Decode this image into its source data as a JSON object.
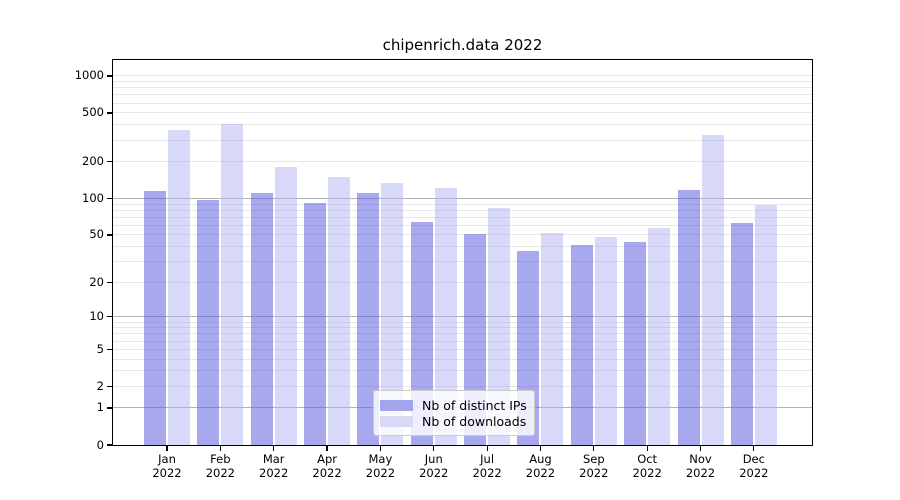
{
  "figure": {
    "background": "#ffffff"
  },
  "chart_data": {
    "type": "bar",
    "title": "chipenrich.data 2022",
    "categories": [
      "Jan",
      "Feb",
      "Mar",
      "Apr",
      "May",
      "Jun",
      "Jul",
      "Aug",
      "Sep",
      "Oct",
      "Nov",
      "Dec"
    ],
    "category_year": "2022",
    "series": [
      {
        "name": "Nb of distinct IPs",
        "legend_color": "#a4a4ed",
        "fill": "rgba(97,97,226,0.55)",
        "values": [
          115,
          97,
          111,
          91,
          110,
          64,
          51,
          37,
          41,
          44,
          117,
          63
        ]
      },
      {
        "name": "Nb of downloads",
        "legend_color": "#d9d9f6",
        "fill": "rgba(173,173,240,0.47)",
        "values": [
          363,
          407,
          180,
          150,
          133,
          122,
          84,
          52,
          48,
          57,
          330,
          88
        ]
      }
    ],
    "y_ticks": [
      0,
      1,
      2,
      5,
      10,
      20,
      50,
      100,
      200,
      500,
      1000
    ],
    "y_scale": "log10(1+x)",
    "ylim": [
      0,
      1300
    ],
    "grid": true,
    "grid_major_at": [
      1,
      10,
      100
    ],
    "legend_position": "lower center",
    "colors": {
      "grid_major": "#b3b3b3",
      "grid_minor": "#e7e7e7",
      "axis": "#000000"
    }
  }
}
